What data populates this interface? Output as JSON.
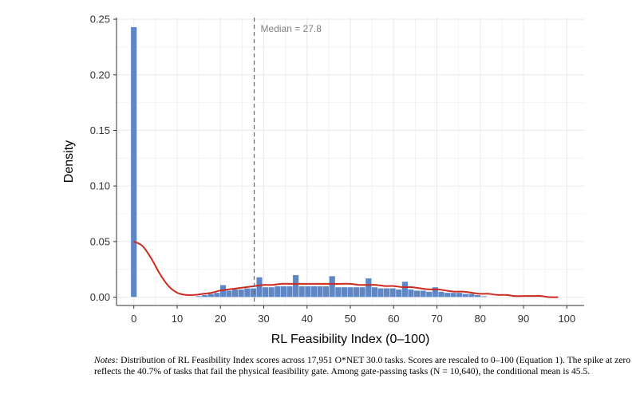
{
  "chart_data": {
    "type": "bar",
    "title": "",
    "xlabel": "RL Feasibility Index (0–100)",
    "ylabel": "Density",
    "xlim": [
      -4,
      104
    ],
    "ylim": [
      -0.0075,
      0.2515
    ],
    "x_ticks": [
      "0",
      "10",
      "20",
      "30",
      "40",
      "50",
      "60",
      "70",
      "80",
      "90",
      "100"
    ],
    "x_tick_values": [
      0,
      10,
      20,
      30,
      40,
      50,
      60,
      70,
      80,
      90,
      100
    ],
    "y_ticks": [
      "0.00",
      "0.05",
      "0.10",
      "0.15",
      "0.20",
      "0.25"
    ],
    "y_tick_values": [
      0,
      0.05,
      0.1,
      0.15,
      0.2,
      0.25
    ],
    "grid": true,
    "bin_width": 1.4,
    "histogram": {
      "bin_centers": [
        0,
        15,
        16.4,
        17.8,
        19.2,
        20.6,
        22,
        23.4,
        24.8,
        26.2,
        27.6,
        29,
        30.4,
        31.8,
        33.2,
        34.6,
        36,
        37.4,
        38.8,
        40.2,
        41.6,
        43,
        44.4,
        45.8,
        47.2,
        48.6,
        50,
        51.4,
        52.8,
        54.2,
        55.6,
        57,
        58.4,
        59.8,
        61.2,
        62.6,
        64,
        65.4,
        66.8,
        68.2,
        69.6,
        71,
        72.4,
        73.8,
        75.2,
        76.6,
        78,
        79.4,
        80.8
      ],
      "density": [
        0.243,
        0.001,
        0.002,
        0.003,
        0.004,
        0.011,
        0.006,
        0.007,
        0.007,
        0.008,
        0.008,
        0.018,
        0.009,
        0.009,
        0.01,
        0.01,
        0.01,
        0.02,
        0.01,
        0.01,
        0.01,
        0.01,
        0.01,
        0.019,
        0.009,
        0.009,
        0.009,
        0.009,
        0.009,
        0.017,
        0.009,
        0.008,
        0.008,
        0.008,
        0.007,
        0.014,
        0.007,
        0.006,
        0.006,
        0.005,
        0.009,
        0.005,
        0.004,
        0.004,
        0.004,
        0.003,
        0.003,
        0.002,
        0.001
      ]
    },
    "density_curve": {
      "name": "",
      "x": [
        0,
        2,
        4,
        6,
        8,
        10,
        12,
        14,
        16,
        18,
        20,
        22,
        24,
        26,
        28,
        30,
        32,
        34,
        36,
        38,
        40,
        42,
        44,
        46,
        48,
        50,
        52,
        54,
        56,
        58,
        60,
        62,
        64,
        66,
        68,
        70,
        72,
        74,
        76,
        78,
        80,
        82,
        84,
        86,
        88,
        90,
        92,
        94,
        96,
        98
      ],
      "y": [
        0.05,
        0.046,
        0.035,
        0.021,
        0.01,
        0.004,
        0.002,
        0.002,
        0.003,
        0.004,
        0.006,
        0.007,
        0.008,
        0.009,
        0.01,
        0.011,
        0.011,
        0.012,
        0.012,
        0.012,
        0.012,
        0.012,
        0.012,
        0.012,
        0.012,
        0.012,
        0.011,
        0.011,
        0.011,
        0.01,
        0.01,
        0.009,
        0.009,
        0.008,
        0.007,
        0.007,
        0.006,
        0.005,
        0.005,
        0.004,
        0.003,
        0.003,
        0.002,
        0.002,
        0.001,
        0.001,
        0.001,
        0.001,
        0,
        0
      ]
    },
    "median_line": {
      "value": 27.8,
      "label": "Median = 27.8"
    },
    "colors": {
      "bars": "#5f86c5",
      "curve": "#cc2a1e",
      "median": "#666666",
      "grid": "#ebebeb"
    }
  },
  "notes": {
    "label": "Notes:",
    "text": " Distribution of RL Feasibility Index scores across 17,951 O*NET 30.0 tasks. Scores are rescaled to 0–100 (Equation 1). The spike at zero reflects the 40.7% of tasks that fail the physical feasibility gate. Among gate-passing tasks (N = 10,640), the conditional mean is 45.5."
  }
}
